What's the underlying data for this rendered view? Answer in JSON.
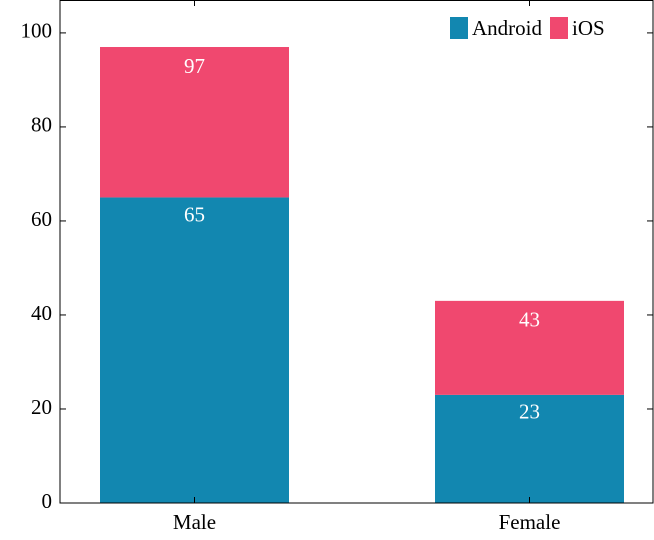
{
  "chart_data": {
    "type": "stacked_bar",
    "categories": [
      "Male",
      "Female"
    ],
    "series": [
      {
        "name": "Android",
        "color": "#1287b0",
        "values": [
          65,
          23
        ]
      },
      {
        "name": "iOS",
        "color": "#f0486f",
        "values": [
          32,
          20
        ]
      }
    ],
    "totals": [
      97,
      43
    ],
    "ylim": [
      0,
      107
    ],
    "yticks": [
      0,
      20,
      40,
      60,
      80,
      100
    ],
    "legend": "top-right"
  }
}
